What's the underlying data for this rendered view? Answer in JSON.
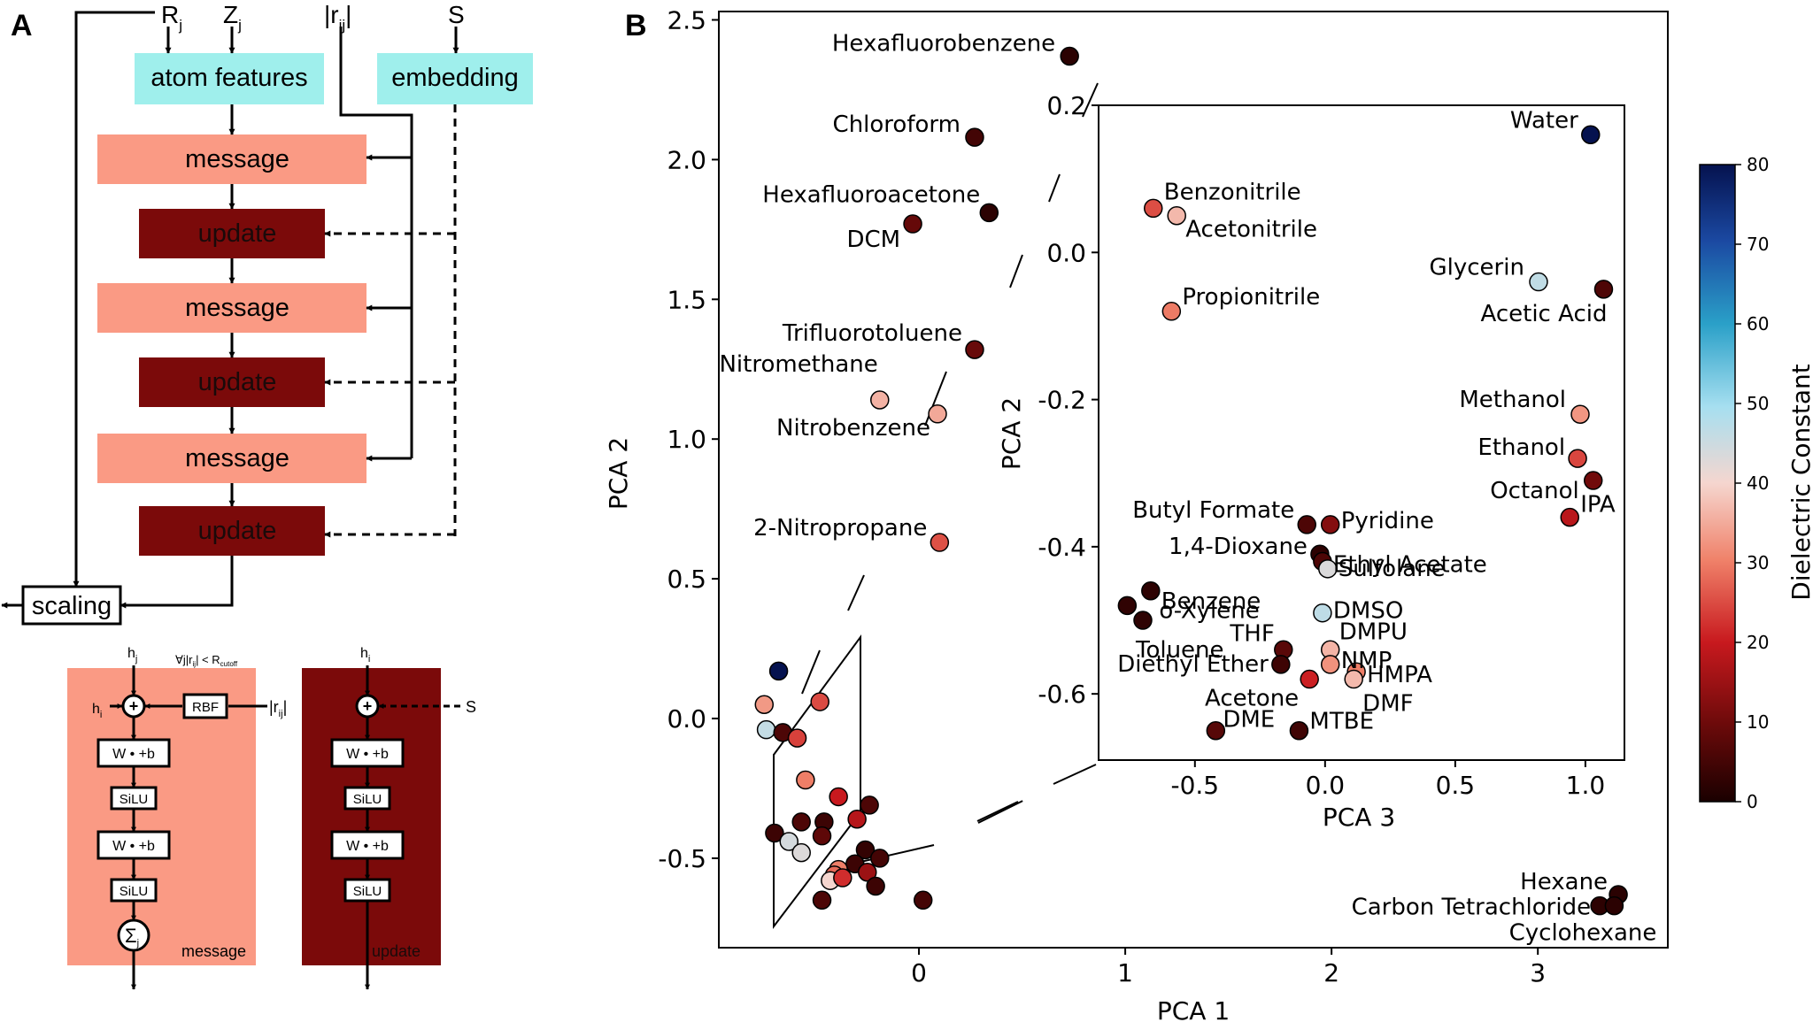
{
  "panel_a": {
    "label": "A",
    "inputs": {
      "rj": "R",
      "rj_sub": "j",
      "zj": "Z",
      "zj_sub": "j",
      "rij": "|r",
      "rij_sub": "ij",
      "rij_close": "|",
      "s": "S"
    },
    "atom_features": "atom features",
    "embedding": "embedding",
    "message": "message",
    "update": "update",
    "scaling": "scaling",
    "colors": {
      "cyan": "#9FEFEC",
      "salmon": "#FA9A84",
      "dark": "#7B0A0A"
    }
  },
  "detail": {
    "hj": "h",
    "hj_sub": "j",
    "hi": "h",
    "hi_sub": "i",
    "cutoff": "∀j|r",
    "cutoff_sub1": "ij",
    "cutoff_mid": "| < R",
    "cutoff_sub2": "cutoff",
    "rbf": "RBF",
    "rij": "|r",
    "rij_sub": "ij",
    "rij_close": "|",
    "wb": "W • +b",
    "silu": "SiLU",
    "sum": "Σ",
    "sum_sub": "j",
    "message": "message",
    "update": "update",
    "s": "S",
    "plus": "+"
  },
  "panel_b": {
    "label": "B"
  },
  "colorbar": {
    "label": "Dielectric Constant",
    "ticks": [
      "0",
      "10",
      "20",
      "30",
      "40",
      "50",
      "60",
      "70",
      "80"
    ]
  },
  "chart_data": [
    {
      "type": "scatter",
      "title": "",
      "xlabel": "PCA 1",
      "ylabel": "PCA 2",
      "xlim": [
        -0.97,
        3.63
      ],
      "ylim": [
        -0.82,
        2.53
      ],
      "xticks": [
        "0",
        "1",
        "2",
        "3"
      ],
      "yticks": [
        "-0.5",
        "0.0",
        "0.5",
        "1.0",
        "1.5",
        "2.0",
        "2.5"
      ],
      "color_key": "dielectric constant",
      "points": [
        {
          "label": "Hexafluorobenzene",
          "x": 0.73,
          "y": 2.37,
          "c": 2.0
        },
        {
          "label": "Chloroform",
          "x": 0.27,
          "y": 2.08,
          "c": 4.8
        },
        {
          "label": "Hexafluoroacetone",
          "x": 0.34,
          "y": 1.81,
          "c": 2.1
        },
        {
          "label": "DCM",
          "x": -0.03,
          "y": 1.77,
          "c": 8.9
        },
        {
          "label": "Trifluorotoluene",
          "x": 0.27,
          "y": 1.32,
          "c": 9.2
        },
        {
          "label": "Nitromethane",
          "x": -0.19,
          "y": 1.14,
          "c": 35.9
        },
        {
          "label": "Nitrobenzene",
          "x": 0.09,
          "y": 1.09,
          "c": 34.8
        },
        {
          "label": "2-Nitropropane",
          "x": 0.1,
          "y": 0.63,
          "c": 25.5
        },
        {
          "label": "Hexane",
          "x": 3.39,
          "y": -0.63,
          "c": 1.9
        },
        {
          "label": "Carbon Tetrachloride",
          "x": 3.3,
          "y": -0.67,
          "c": 2.2
        },
        {
          "label": "Cyclohexane",
          "x": 3.37,
          "y": -0.67,
          "c": 2.0
        },
        {
          "label": "",
          "x": -0.68,
          "y": 0.17,
          "c": 80
        },
        {
          "label": "",
          "x": -0.75,
          "y": 0.05,
          "c": 33
        },
        {
          "label": "",
          "x": -0.74,
          "y": -0.04,
          "c": 46
        },
        {
          "label": "",
          "x": -0.66,
          "y": -0.05,
          "c": 6
        },
        {
          "label": "",
          "x": -0.59,
          "y": -0.07,
          "c": 24
        },
        {
          "label": "",
          "x": -0.48,
          "y": 0.06,
          "c": 25
        },
        {
          "label": "",
          "x": -0.55,
          "y": -0.22,
          "c": 30
        },
        {
          "label": "",
          "x": -0.39,
          "y": -0.28,
          "c": 20
        },
        {
          "label": "",
          "x": -0.24,
          "y": -0.31,
          "c": 6
        },
        {
          "label": "",
          "x": -0.57,
          "y": -0.37,
          "c": 6
        },
        {
          "label": "",
          "x": -0.46,
          "y": -0.37,
          "c": 4
        },
        {
          "label": "",
          "x": -0.3,
          "y": -0.36,
          "c": 18
        },
        {
          "label": "",
          "x": -0.7,
          "y": -0.41,
          "c": 4
        },
        {
          "label": "",
          "x": -0.63,
          "y": -0.44,
          "c": 44
        },
        {
          "label": "",
          "x": -0.47,
          "y": -0.42,
          "c": 8
        },
        {
          "label": "",
          "x": -0.57,
          "y": -0.48,
          "c": 43
        },
        {
          "label": "",
          "x": -0.26,
          "y": -0.47,
          "c": 3
        },
        {
          "label": "",
          "x": -0.31,
          "y": -0.52,
          "c": 4
        },
        {
          "label": "",
          "x": -0.19,
          "y": -0.5,
          "c": 5
        },
        {
          "label": "",
          "x": -0.25,
          "y": -0.55,
          "c": 15
        },
        {
          "label": "",
          "x": -0.39,
          "y": -0.54,
          "c": 30
        },
        {
          "label": "",
          "x": -0.41,
          "y": -0.56,
          "c": 28
        },
        {
          "label": "",
          "x": -0.43,
          "y": -0.58,
          "c": 40
        },
        {
          "label": "",
          "x": -0.37,
          "y": -0.57,
          "c": 22
        },
        {
          "label": "",
          "x": -0.21,
          "y": -0.6,
          "c": 4
        },
        {
          "label": "",
          "x": -0.47,
          "y": -0.65,
          "c": 6
        },
        {
          "label": "",
          "x": 0.02,
          "y": -0.65,
          "c": 5
        }
      ]
    },
    {
      "type": "scatter",
      "title": "",
      "xlabel": "PCA 3",
      "ylabel": "PCA 2",
      "xlim": [
        -0.87,
        1.15
      ],
      "ylim": [
        -0.69,
        0.2
      ],
      "xticks": [
        "-0.5",
        "0.0",
        "0.5",
        "1.0"
      ],
      "yticks": [
        "-0.6",
        "-0.4",
        "-0.2",
        "0.0",
        "0.2"
      ],
      "color_key": "dielectric constant",
      "points": [
        {
          "label": "Water",
          "x": 1.02,
          "y": 0.16,
          "c": 80
        },
        {
          "label": "Benzonitrile",
          "x": -0.66,
          "y": 0.06,
          "c": 25.2
        },
        {
          "label": "Acetonitrile",
          "x": -0.57,
          "y": 0.05,
          "c": 36.6
        },
        {
          "label": "Propionitrile",
          "x": -0.59,
          "y": -0.08,
          "c": 29.7
        },
        {
          "label": "Glycerin",
          "x": 0.82,
          "y": -0.04,
          "c": 46.5
        },
        {
          "label": "Acetic Acid",
          "x": 1.07,
          "y": -0.05,
          "c": 6.2
        },
        {
          "label": "Methanol",
          "x": 0.98,
          "y": -0.22,
          "c": 32.7
        },
        {
          "label": "Ethanol",
          "x": 0.97,
          "y": -0.28,
          "c": 24.5
        },
        {
          "label": "Octanol",
          "x": 1.03,
          "y": -0.31,
          "c": 10.3
        },
        {
          "label": "IPA",
          "x": 0.94,
          "y": -0.36,
          "c": 18.3
        },
        {
          "label": "Butyl Formate",
          "x": -0.07,
          "y": -0.37,
          "c": 6.1
        },
        {
          "label": "Pyridine",
          "x": 0.02,
          "y": -0.37,
          "c": 12.4
        },
        {
          "label": "1,4-Dioxane",
          "x": -0.02,
          "y": -0.41,
          "c": 2.2
        },
        {
          "label": "Ethyl Acetate",
          "x": -0.01,
          "y": -0.42,
          "c": 6.0
        },
        {
          "label": "Sulfolane",
          "x": 0.01,
          "y": -0.43,
          "c": 43.3
        },
        {
          "label": "Benzene",
          "x": -0.67,
          "y": -0.46,
          "c": 2.3
        },
        {
          "label": "o-Xylene",
          "x": -0.76,
          "y": -0.48,
          "c": 2.6
        },
        {
          "label": "Toluene",
          "x": -0.7,
          "y": -0.5,
          "c": 2.4
        },
        {
          "label": "DMSO",
          "x": -0.01,
          "y": -0.49,
          "c": 46.7
        },
        {
          "label": "DMPU",
          "x": 0.02,
          "y": -0.54,
          "c": 36.1
        },
        {
          "label": "THF",
          "x": -0.16,
          "y": -0.54,
          "c": 7.5
        },
        {
          "label": "NMP",
          "x": 0.02,
          "y": -0.56,
          "c": 32.2
        },
        {
          "label": "Diethyl Ether",
          "x": -0.17,
          "y": -0.56,
          "c": 4.3
        },
        {
          "label": "HMPA",
          "x": 0.12,
          "y": -0.57,
          "c": 30
        },
        {
          "label": "Acetone",
          "x": -0.06,
          "y": -0.58,
          "c": 20.7
        },
        {
          "label": "DMF",
          "x": 0.11,
          "y": -0.58,
          "c": 36.7
        },
        {
          "label": "DME",
          "x": -0.42,
          "y": -0.65,
          "c": 7.2
        },
        {
          "label": "MTBE",
          "x": -0.1,
          "y": -0.65,
          "c": 4.5
        }
      ]
    }
  ]
}
